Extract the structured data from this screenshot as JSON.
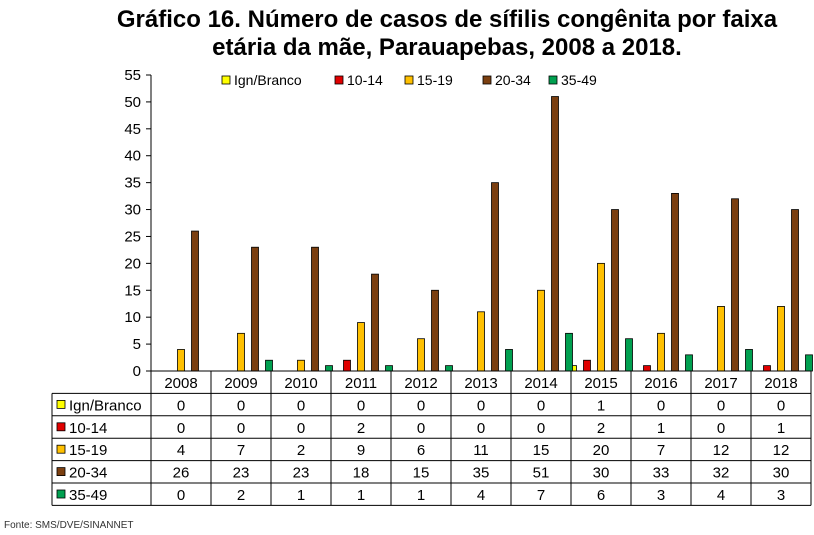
{
  "title_line1": "Gráfico 16. Número de casos de sífilis congênita por faixa",
  "title_line2": "etária da mãe, Parauapebas, 2008 a 2018.",
  "source": "Fonte: SMS/DVE/SINANNET",
  "chart_data": {
    "type": "bar",
    "title": "Gráfico 16. Número de casos de sífilis congênita por faixa etária da mãe, Parauapebas, 2008 a 2018.",
    "xlabel": "",
    "ylabel": "",
    "ylim": [
      0,
      55
    ],
    "yticks": [
      0,
      5,
      10,
      15,
      20,
      25,
      30,
      35,
      40,
      45,
      50,
      55
    ],
    "legend_position": "top",
    "categories": [
      "2008",
      "2009",
      "2010",
      "2011",
      "2012",
      "2013",
      "2014",
      "2015",
      "2016",
      "2017",
      "2018"
    ],
    "series": [
      {
        "name": "Ign/Branco",
        "color": "#ffff00",
        "values": [
          0,
          0,
          0,
          0,
          0,
          0,
          0,
          1,
          0,
          0,
          0
        ]
      },
      {
        "name": "10-14",
        "color": "#e00000",
        "values": [
          0,
          0,
          0,
          2,
          0,
          0,
          0,
          2,
          1,
          0,
          1
        ]
      },
      {
        "name": "15-19",
        "color": "#ffc000",
        "values": [
          4,
          7,
          2,
          9,
          6,
          11,
          15,
          20,
          7,
          12,
          12
        ]
      },
      {
        "name": "20-34",
        "color": "#7b3f10",
        "values": [
          26,
          23,
          23,
          18,
          15,
          35,
          51,
          30,
          33,
          32,
          30
        ]
      },
      {
        "name": "35-49",
        "color": "#00a050",
        "values": [
          0,
          2,
          1,
          1,
          1,
          4,
          7,
          6,
          3,
          4,
          3
        ]
      }
    ]
  }
}
